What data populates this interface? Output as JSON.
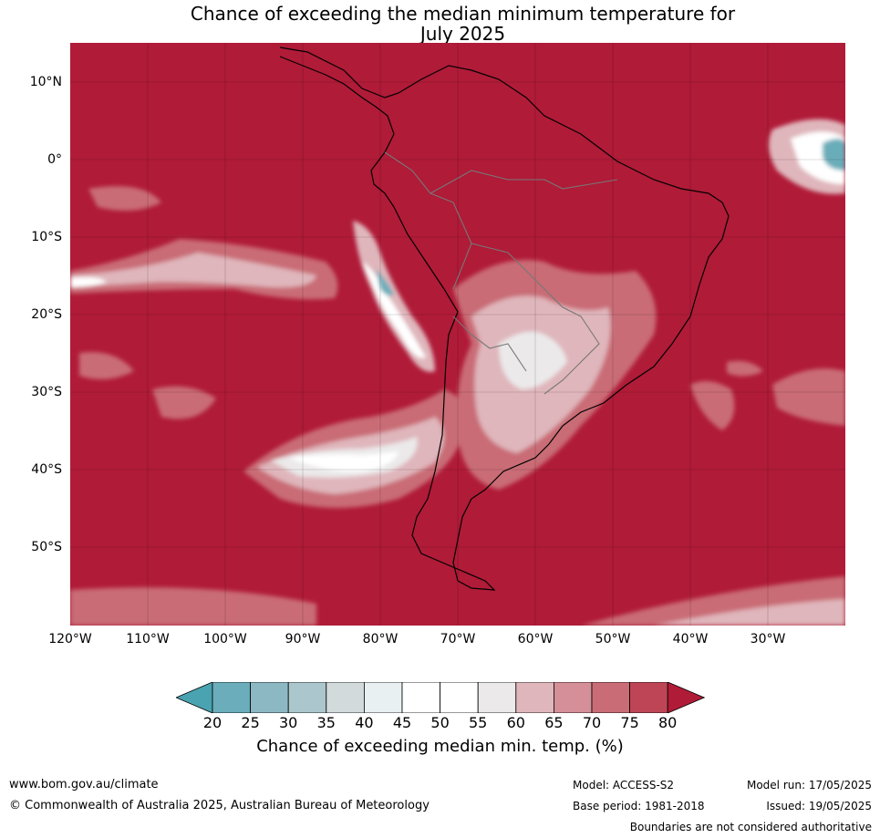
{
  "title_line1": "Chance of exceeding the median minimum temperature for",
  "title_line2": "July 2025",
  "latitudes": [
    "10°N",
    "0°",
    "10°S",
    "20°S",
    "30°S",
    "40°S",
    "50°S"
  ],
  "longitudes": [
    "120°W",
    "110°W",
    "100°W",
    "90°W",
    "80°W",
    "70°W",
    "60°W",
    "50°W",
    "40°W",
    "30°W"
  ],
  "colorbar": {
    "ticks": [
      "20",
      "25",
      "30",
      "35",
      "40",
      "45",
      "50",
      "55",
      "60",
      "65",
      "70",
      "75",
      "80"
    ],
    "colors": [
      "#4aa3b0",
      "#6badba",
      "#8cb8c4",
      "#abc6cc",
      "#d3dadb",
      "#e9f0f2",
      "#ffffff",
      "#ffffff",
      "#ebe9ea",
      "#dfb6bb",
      "#d48f98",
      "#c96c76",
      "#be4556",
      "#b01b38"
    ],
    "label": "Chance of exceeding median min. temp. (%)"
  },
  "footer": {
    "website": "www.bom.gov.au/climate",
    "copyright": "© Commonwealth of Australia 2025, Australian Bureau of Meteorology",
    "model": "Model: ACCESS-S2",
    "base_period": "Base period: 1981-2018",
    "model_run": "Model run: 17/05/2025",
    "issued": "Issued: 19/05/2025",
    "disclaimer": "Boundaries are not considered authoritative"
  }
}
